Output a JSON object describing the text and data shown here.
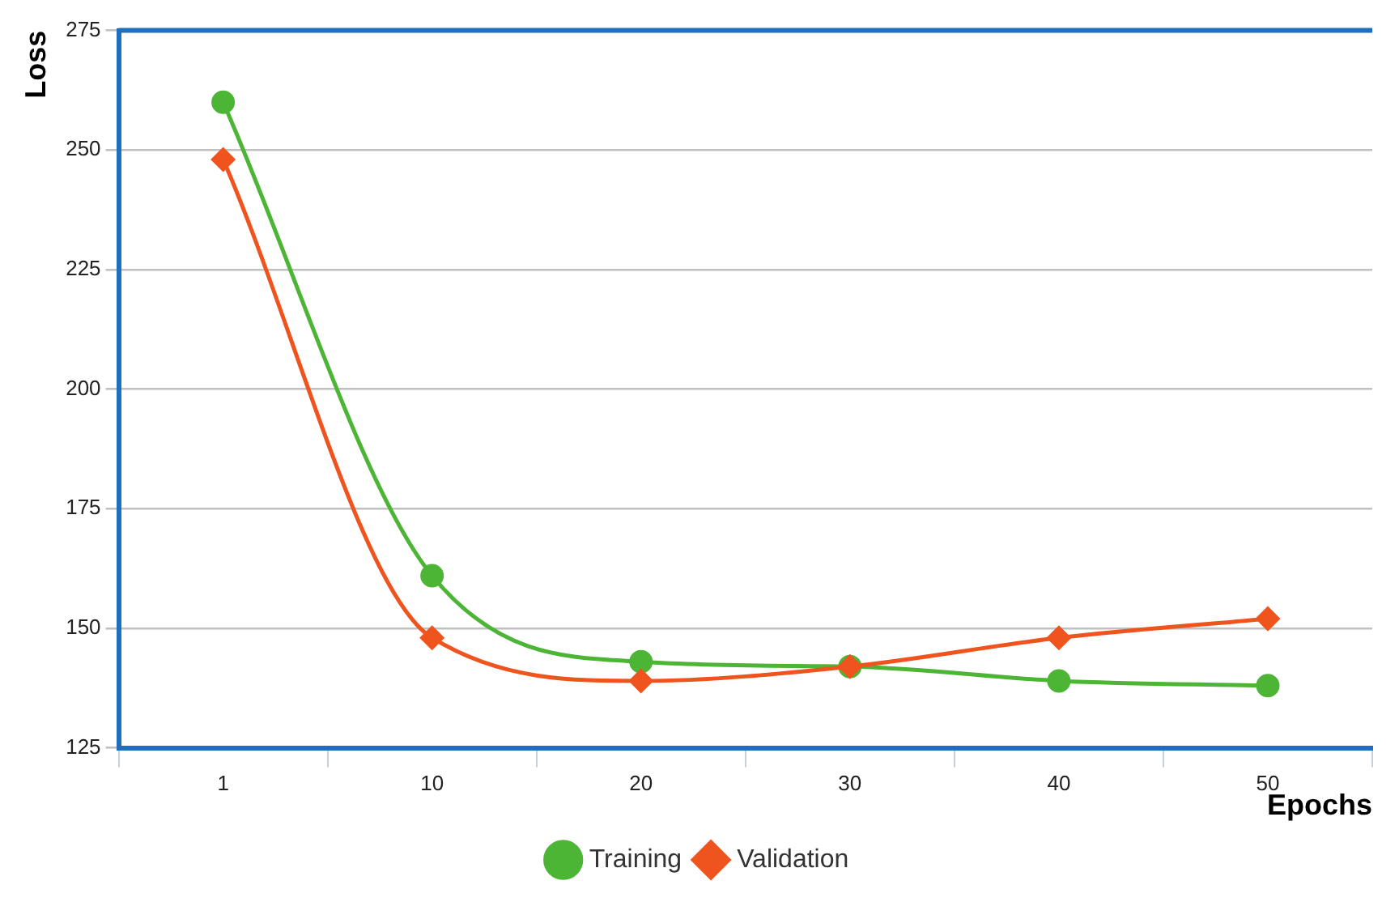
{
  "chart_data": {
    "type": "line",
    "xlabel": "Epochs",
    "ylabel": "Loss",
    "categories": [
      "1",
      "10",
      "20",
      "30",
      "40",
      "50"
    ],
    "series": [
      {
        "name": "Training",
        "color": "#4db535",
        "marker": "circle",
        "values": [
          260,
          161,
          143,
          142,
          139,
          138
        ]
      },
      {
        "name": "Validation",
        "color": "#f0541e",
        "marker": "diamond",
        "values": [
          248,
          148,
          139,
          142,
          148,
          152
        ]
      }
    ],
    "ylim": [
      125,
      275
    ],
    "yticks": [
      125,
      150,
      175,
      200,
      225,
      250,
      275
    ],
    "grid": "y",
    "legend": "bottom"
  }
}
